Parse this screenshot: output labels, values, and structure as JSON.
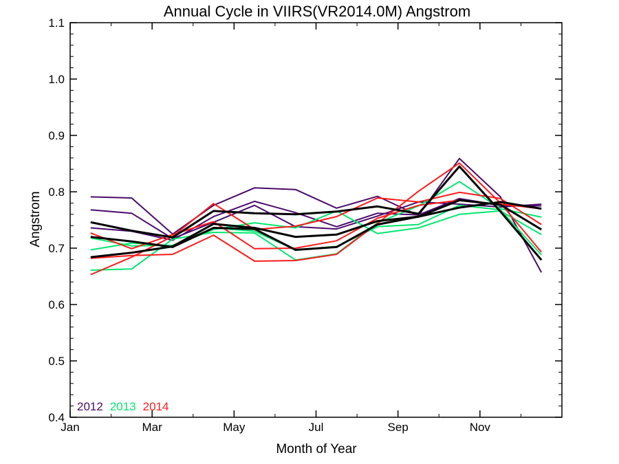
{
  "chart_data": {
    "type": "line",
    "title": "Annual Cycle in VIIRS(VR2014.0M) Angstrom",
    "xlabel": "Month of Year",
    "ylabel": "Angstrom",
    "xlim": [
      1,
      13
    ],
    "ylim": [
      0.4,
      1.1
    ],
    "x_ticks": [
      {
        "value": 1,
        "label": "Jan"
      },
      {
        "value": 3,
        "label": "Mar"
      },
      {
        "value": 5,
        "label": "May"
      },
      {
        "value": 7,
        "label": "Jul"
      },
      {
        "value": 9,
        "label": "Sep"
      },
      {
        "value": 11,
        "label": "Nov"
      }
    ],
    "y_ticks": [
      0.4,
      0.5,
      0.6,
      0.7,
      0.8,
      0.9,
      1.0,
      1.1
    ],
    "y_tick_labels": [
      "0.4",
      "0.5",
      "0.6",
      "0.7",
      "0.8",
      "0.9",
      "1.0",
      "1.1"
    ],
    "grid": false,
    "legend_position": "bottom-left",
    "legend": [
      {
        "label": "2012",
        "color": "#4b0a6b"
      },
      {
        "label": "2013",
        "color": "#00e86e"
      },
      {
        "label": "2014",
        "color": "#ff1a1a"
      }
    ],
    "x": [
      1.5,
      2.5,
      3.5,
      4.5,
      5.5,
      6.5,
      7.5,
      8.5,
      9.5,
      10.5,
      11.5,
      12.5
    ],
    "series": [
      {
        "color": "#4b0a6b",
        "width": 2,
        "values": [
          0.791,
          0.789,
          0.725,
          0.776,
          0.807,
          0.804,
          0.771,
          0.792,
          0.758,
          0.859,
          0.791,
          0.657
        ]
      },
      {
        "color": "#4b0a6b",
        "width": 2,
        "values": [
          0.768,
          0.762,
          0.717,
          0.746,
          0.776,
          0.738,
          0.734,
          0.757,
          0.782,
          0.778,
          0.773,
          0.778
        ]
      },
      {
        "color": "#4b0a6b",
        "width": 2,
        "values": [
          0.736,
          0.73,
          0.714,
          0.756,
          0.783,
          0.763,
          0.738,
          0.762,
          0.759,
          0.788,
          0.776,
          0.775
        ]
      },
      {
        "color": "#00e86e",
        "width": 2,
        "values": [
          0.661,
          0.663,
          0.716,
          0.728,
          0.727,
          0.679,
          0.69,
          0.745,
          0.775,
          0.818,
          0.77,
          0.755
        ]
      },
      {
        "color": "#00e86e",
        "width": 2,
        "values": [
          0.697,
          0.709,
          0.704,
          0.733,
          0.745,
          0.736,
          0.766,
          0.726,
          0.736,
          0.76,
          0.766,
          0.724
        ]
      },
      {
        "color": "#00e86e",
        "width": 2,
        "values": [
          0.718,
          0.704,
          0.705,
          0.736,
          0.73,
          0.697,
          0.703,
          0.738,
          0.742,
          0.776,
          0.768,
          0.688
        ]
      },
      {
        "color": "#ff1a1a",
        "width": 2,
        "values": [
          0.653,
          0.684,
          0.721,
          0.779,
          0.733,
          0.739,
          0.756,
          0.789,
          0.782,
          0.799,
          0.788,
          0.742
        ]
      },
      {
        "color": "#ff1a1a",
        "width": 2,
        "values": [
          0.682,
          0.687,
          0.689,
          0.723,
          0.677,
          0.678,
          0.689,
          0.744,
          0.801,
          0.851,
          0.78,
          0.693
        ]
      },
      {
        "color": "#ff1a1a",
        "width": 2,
        "values": [
          0.727,
          0.699,
          0.724,
          0.747,
          0.699,
          0.7,
          0.713,
          0.753,
          0.776,
          0.785,
          0.778,
          0.77
        ]
      },
      {
        "color": "#000000",
        "width": 3,
        "values": [
          0.746,
          0.731,
          0.719,
          0.766,
          0.762,
          0.76,
          0.765,
          0.774,
          0.761,
          0.845,
          0.765,
          0.679
        ]
      },
      {
        "color": "#000000",
        "width": 3,
        "values": [
          0.684,
          0.692,
          0.703,
          0.743,
          0.736,
          0.72,
          0.724,
          0.748,
          0.756,
          0.785,
          0.777,
          0.733
        ]
      },
      {
        "color": "#000000",
        "width": 3,
        "values": [
          0.72,
          0.712,
          0.702,
          0.736,
          0.734,
          0.697,
          0.702,
          0.742,
          0.756,
          0.772,
          0.782,
          0.77
        ]
      }
    ]
  }
}
